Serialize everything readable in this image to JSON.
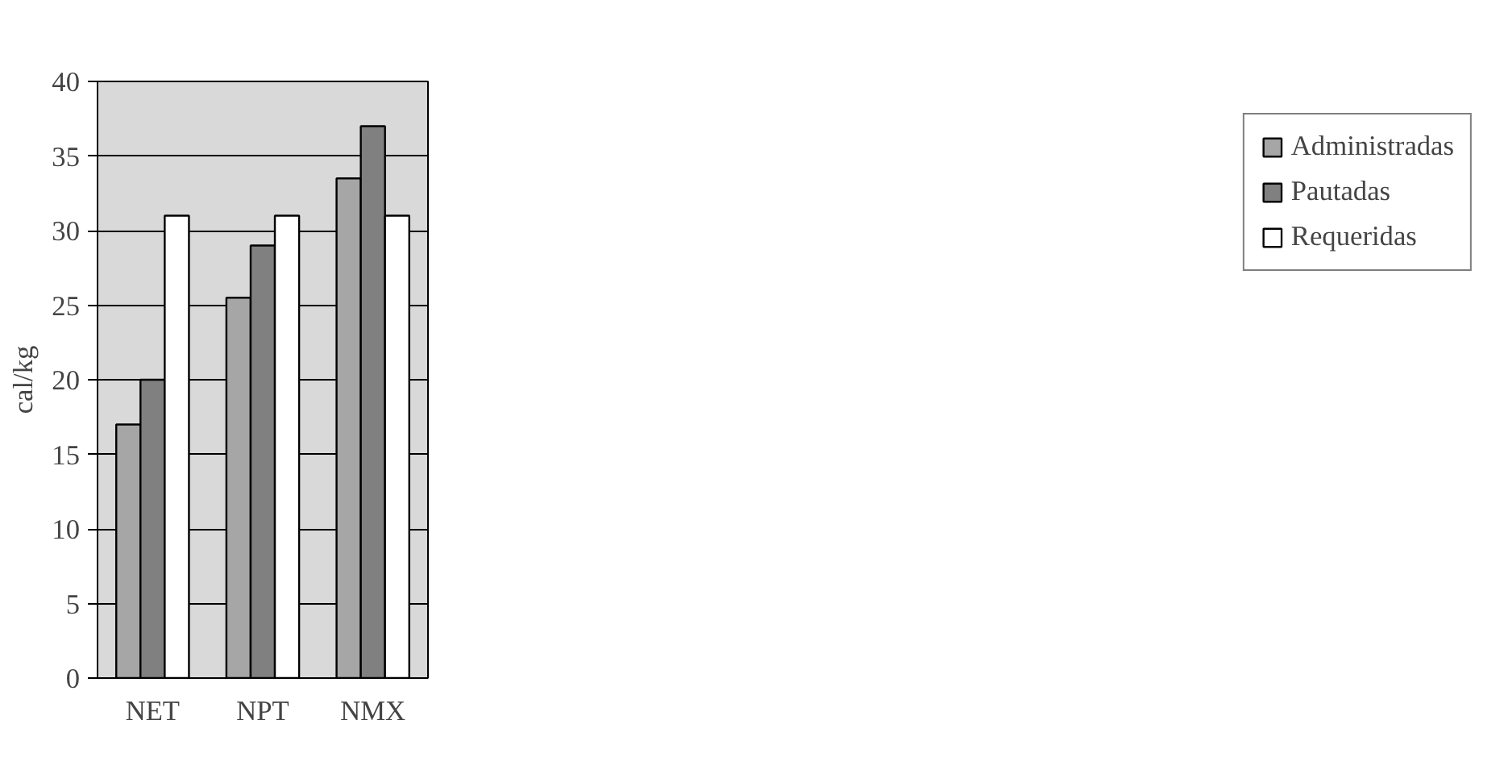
{
  "chart_data": {
    "type": "bar",
    "ylabel": "cal/kg",
    "categories": [
      "NET",
      "NPT",
      "NMX"
    ],
    "series": [
      {
        "name": "Administradas",
        "color": "#a6a6a6",
        "values": [
          17,
          25.5,
          33.5
        ]
      },
      {
        "name": "Pautadas",
        "color": "#808080",
        "values": [
          20,
          29,
          37
        ]
      },
      {
        "name": "Requeridas",
        "color": "#ffffff",
        "values": [
          31,
          31,
          31
        ]
      }
    ],
    "ylim": [
      0,
      40
    ],
    "yticks": [
      0,
      5,
      10,
      15,
      20,
      25,
      30,
      35,
      40
    ],
    "grid": "y",
    "legend": "right"
  }
}
